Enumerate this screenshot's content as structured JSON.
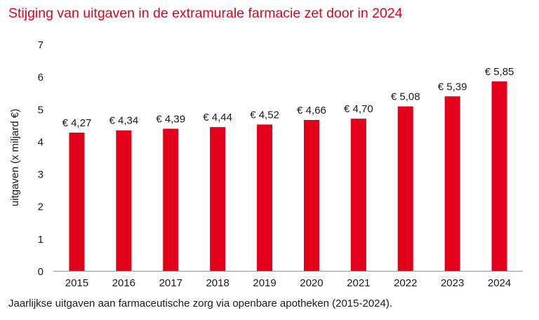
{
  "chart_data": {
    "type": "bar",
    "title": "Stijging van uitgaven in de extramurale farmacie zet door in 2024",
    "caption": "Jaarlijkse uitgaven aan farmaceutische zorg via openbare apotheken (2015-2024).",
    "xlabel": "",
    "ylabel": "uitgaven (x miljard €)",
    "ylim": [
      0,
      7
    ],
    "yticks": [
      "0",
      "1",
      "2",
      "3",
      "4",
      "5",
      "6",
      "7"
    ],
    "grid": false,
    "bar_color": "#e2001a",
    "categories": [
      "2015",
      "2016",
      "2017",
      "2018",
      "2019",
      "2020",
      "2021",
      "2022",
      "2023",
      "2024"
    ],
    "values": [
      4.27,
      4.34,
      4.39,
      4.44,
      4.52,
      4.66,
      4.7,
      5.08,
      5.39,
      5.85
    ],
    "data_labels": [
      "€ 4,27",
      "€ 4,34",
      "€ 4,39",
      "€ 4,44",
      "€ 4,52",
      "€ 4,66",
      "€ 4,70",
      "€ 5,08",
      "€ 5,39",
      "€ 5,85"
    ]
  }
}
